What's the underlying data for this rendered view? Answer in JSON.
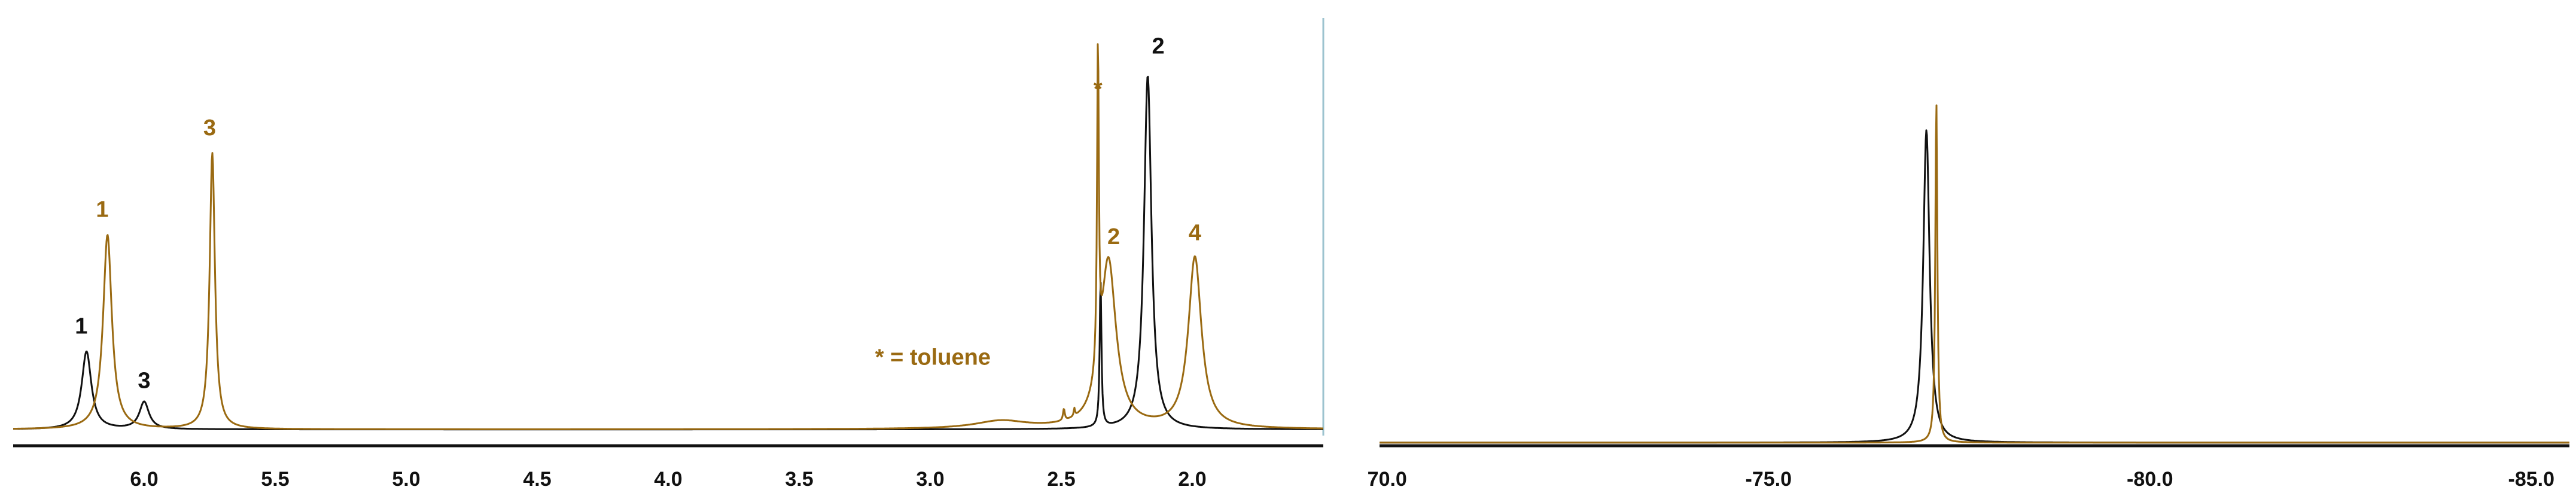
{
  "colors": {
    "black_trace": "#111111",
    "gold_trace": "#9a6a12",
    "axis": "#111111",
    "frame": "#9cc3cf"
  },
  "chart_data": [
    {
      "type": "line",
      "title": "",
      "xlabel": "",
      "ylabel": "",
      "xlim": [
        6.5,
        1.5
      ],
      "ylim": [
        0,
        100
      ],
      "reversed_x": true,
      "x_ticks": [
        "6.0",
        "5.5",
        "5.0",
        "4.5",
        "4.0",
        "3.5",
        "3.0",
        "2.5",
        "2.0"
      ],
      "series": [
        {
          "color": "black",
          "peaks": [
            {
              "x": 6.22,
              "height": 20,
              "width": 0.022
            },
            {
              "x": 6.0,
              "height": 7,
              "width": 0.022
            },
            {
              "x": 2.35,
              "height": 38,
              "width": 0.004
            },
            {
              "x": 2.17,
              "height": 91,
              "width": 0.017
            }
          ]
        },
        {
          "color": "gold",
          "peaks": [
            {
              "x": 6.14,
              "height": 50,
              "width": 0.02
            },
            {
              "x": 5.74,
              "height": 71,
              "width": 0.012
            },
            {
              "x": 2.36,
              "height": 83,
              "width": 0.004
            },
            {
              "x": 2.32,
              "height": 43,
              "width": 0.035
            },
            {
              "x": 1.99,
              "height": 44,
              "width": 0.03
            },
            {
              "x": 2.73,
              "height": 2,
              "width": 0.12
            },
            {
              "x": 2.49,
              "height": 3,
              "width": 0.004
            },
            {
              "x": 2.45,
              "height": 2,
              "width": 0.003
            }
          ]
        }
      ],
      "peak_labels": [
        {
          "text": "1",
          "x": 6.24,
          "level": 25,
          "color": "black"
        },
        {
          "text": "3",
          "x": 6.0,
          "level": 11,
          "color": "black"
        },
        {
          "text": "2",
          "x": 2.13,
          "level": 97,
          "color": "black"
        },
        {
          "text": "1",
          "x": 6.16,
          "level": 55,
          "color": "gold"
        },
        {
          "text": "3",
          "x": 5.75,
          "level": 76,
          "color": "gold"
        },
        {
          "text": "*",
          "x": 2.36,
          "level": 86,
          "color": "gold"
        },
        {
          "text": "2",
          "x": 2.3,
          "level": 48,
          "color": "gold"
        },
        {
          "text": "4",
          "x": 1.99,
          "level": 49,
          "color": "gold"
        }
      ],
      "annotation": {
        "text": "* = toluene",
        "x": 2.99,
        "level": 17,
        "color": "gold"
      }
    },
    {
      "type": "line",
      "title": "",
      "xlabel": "",
      "ylabel": "",
      "xlim": [
        -69.9,
        -85.5
      ],
      "ylim": [
        0,
        100
      ],
      "reversed_x": true,
      "x_ticks": [
        {
          "value": -70.0,
          "label": "70.0"
        },
        {
          "value": -75.0,
          "label": "-75.0"
        },
        {
          "value": -80.0,
          "label": "-80.0"
        },
        {
          "value": -85.0,
          "label": "-85.0"
        }
      ],
      "series": [
        {
          "color": "black",
          "peaks": [
            {
              "x": -77.07,
              "height": 84,
              "width": 0.05
            }
          ]
        },
        {
          "color": "gold",
          "peaks": [
            {
              "x": -77.2,
              "height": 92,
              "width": 0.016
            }
          ]
        }
      ]
    }
  ]
}
